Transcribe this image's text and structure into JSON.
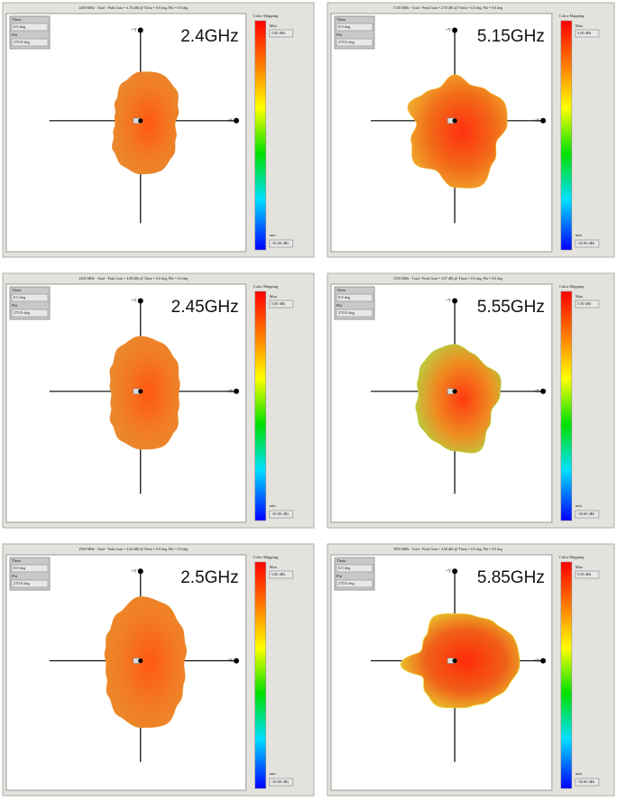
{
  "panels": [
    {
      "header": "2400 MHz - Total - Peak Gain = 4.76 dBi @ Theta = 0.0 deg, Phi = 0.0 deg",
      "frequency": "2.4GHz",
      "theta_label": "Theta",
      "theta": "0.0 deg",
      "phi_label": "Phi",
      "phi": "270.0 deg",
      "legend_title": "Color Mapping",
      "max_label": "Max",
      "max": "5.00 dBi",
      "min_label": "min",
      "min": "-30.00 dBi",
      "y_axis": "+Y",
      "x_axis": "+X"
    },
    {
      "header": "5150 MHz - Total - Peak Gain = 2.93 dBi @ Theta = 0.0 deg, Phi = 0.0 deg",
      "frequency": "5.15GHz",
      "theta_label": "Theta",
      "theta": "0.0 deg",
      "phi_label": "Phi",
      "phi": "270.0 deg",
      "legend_title": "Color Mapping",
      "max_label": "Max",
      "max": "5.00 dBi",
      "min_label": "min",
      "min": "-30.00 dBi",
      "y_axis": "+Y",
      "x_axis": "+X"
    },
    {
      "header": "2450 MHz - Total - Peak Gain = 4.88 dBi @ Theta = 0.0 deg, Phi = 0.0 deg",
      "frequency": "2.45GHz",
      "theta_label": "Theta",
      "theta": "0.0 deg",
      "phi_label": "Phi",
      "phi": "270.0 deg",
      "legend_title": "Color Mapping",
      "max_label": "Max",
      "max": "5.00 dBi",
      "min_label": "min",
      "min": "-30.00 dBi",
      "y_axis": "+Y",
      "x_axis": "+X"
    },
    {
      "header": "5550 MHz - Total - Peak Gain = 3.07 dBi @ Theta = 0.0 deg, Phi = 0.0 deg",
      "frequency": "5.55GHz",
      "theta_label": "Theta",
      "theta": "0.0 deg",
      "phi_label": "Phi",
      "phi": "270.0 deg",
      "legend_title": "Color Mapping",
      "max_label": "Max",
      "max": "5.00 dBi",
      "min_label": "min",
      "min": "-30.00 dBi",
      "y_axis": "+Y",
      "x_axis": "+X"
    },
    {
      "header": "2500 MHz - Total - Peak Gain = 4.64 dBi @ Theta = 0.0 deg, Phi = 0.0 deg",
      "frequency": "2.5GHz",
      "theta_label": "Theta",
      "theta": "0.0 deg",
      "phi_label": "Phi",
      "phi": "270.0 deg",
      "legend_title": "Color Mapping",
      "max_label": "Max",
      "max": "5.00 dBi",
      "min_label": "min",
      "min": "-30.00 dBi",
      "y_axis": "+Y",
      "x_axis": "+X"
    },
    {
      "header": "5850 MHz - Total - Peak Gain = 4.60 dBi @ Theta = 0.0 deg, Phi = 0.0 deg",
      "frequency": "5.85GHz",
      "theta_label": "Theta",
      "theta": "0.0 deg",
      "phi_label": "Phi",
      "phi": "270.0 deg",
      "legend_title": "Color Mapping",
      "max_label": "Max",
      "max": "5.00 dBi",
      "min_label": "min",
      "min": "-30.00 dBi",
      "y_axis": "+Y",
      "x_axis": "+X"
    }
  ]
}
